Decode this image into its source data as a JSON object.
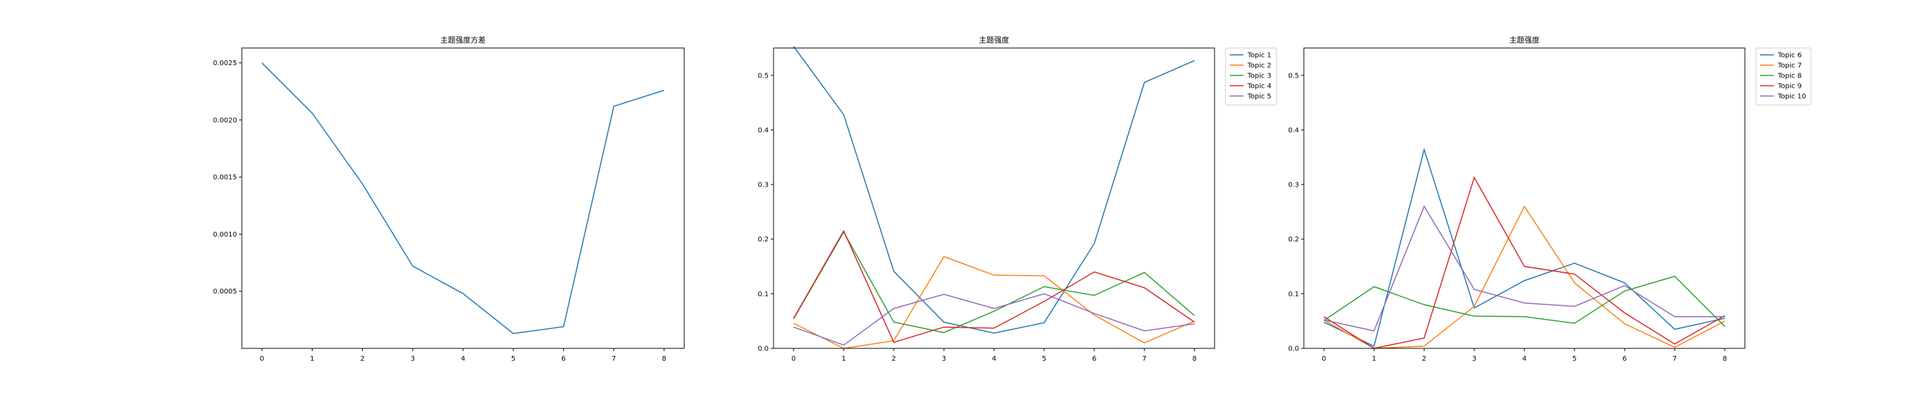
{
  "chart_data": [
    {
      "type": "line",
      "title": "主题强度方差",
      "x": [
        0,
        1,
        2,
        3,
        4,
        5,
        6,
        7,
        8
      ],
      "xticks": [
        0,
        1,
        2,
        3,
        4,
        5,
        6,
        7,
        8
      ],
      "xlim": [
        -0.4,
        8.4
      ],
      "ylim": [
        0,
        0.00263
      ],
      "yticks": [
        0.0005,
        0.001,
        0.0015,
        0.002,
        0.0025
      ],
      "ytick_labels": [
        "0.0005",
        "0.0010",
        "0.0015",
        "0.0020",
        "0.0025"
      ],
      "legend": "none",
      "grid": false,
      "series": [
        {
          "values": [
            0.0025,
            0.00206,
            0.00144,
            0.00072,
            0.00048,
            0.00013,
            0.00019,
            0.00212,
            0.00226
          ],
          "color": "#1f77b4"
        }
      ]
    },
    {
      "type": "line",
      "title": "主题强度",
      "x": [
        0,
        1,
        2,
        3,
        4,
        5,
        6,
        7,
        8
      ],
      "xticks": [
        0,
        1,
        2,
        3,
        4,
        5,
        6,
        7,
        8
      ],
      "xlim": [
        -0.4,
        8.4
      ],
      "ylim": [
        0,
        0.55
      ],
      "yticks": [
        0.0,
        0.1,
        0.2,
        0.3,
        0.4,
        0.5
      ],
      "ytick_labels": [
        "0.0",
        "0.1",
        "0.2",
        "0.3",
        "0.4",
        "0.5"
      ],
      "legend": "outside-upper-right",
      "grid": false,
      "series": [
        {
          "name": "Topic 1",
          "values": [
            0.553,
            0.428,
            0.141,
            0.048,
            0.028,
            0.047,
            0.192,
            0.487,
            0.527
          ],
          "color": "#1f77b4"
        },
        {
          "name": "Topic 2",
          "values": [
            0.046,
            0.0,
            0.014,
            0.168,
            0.134,
            0.133,
            0.061,
            0.01,
            0.05
          ],
          "color": "#ff7f0e"
        },
        {
          "name": "Topic 3",
          "values": [
            0.054,
            0.213,
            0.048,
            0.029,
            0.068,
            0.113,
            0.097,
            0.139,
            0.06
          ],
          "color": "#2ca02c"
        },
        {
          "name": "Topic 4",
          "values": [
            0.055,
            0.215,
            0.011,
            0.039,
            0.037,
            0.086,
            0.14,
            0.111,
            0.048
          ],
          "color": "#d62728"
        },
        {
          "name": "Topic 5",
          "values": [
            0.039,
            0.006,
            0.073,
            0.099,
            0.073,
            0.1,
            0.064,
            0.032,
            0.045
          ],
          "color": "#9467bd"
        }
      ]
    },
    {
      "type": "line",
      "title": "主题强度",
      "x": [
        0,
        1,
        2,
        3,
        4,
        5,
        6,
        7,
        8
      ],
      "xticks": [
        0,
        1,
        2,
        3,
        4,
        5,
        6,
        7,
        8
      ],
      "xlim": [
        -0.4,
        8.4
      ],
      "ylim": [
        0,
        0.55
      ],
      "yticks": [
        0.0,
        0.1,
        0.2,
        0.3,
        0.4,
        0.5
      ],
      "ytick_labels": [
        "0.0",
        "0.1",
        "0.2",
        "0.3",
        "0.4",
        "0.5"
      ],
      "legend": "outside-upper-right",
      "grid": false,
      "series": [
        {
          "name": "Topic 6",
          "values": [
            0.048,
            0.004,
            0.364,
            0.074,
            0.124,
            0.156,
            0.12,
            0.035,
            0.055
          ],
          "color": "#1f77b4"
        },
        {
          "name": "Topic 7",
          "values": [
            0.052,
            0.0,
            0.004,
            0.077,
            0.26,
            0.12,
            0.045,
            0.002,
            0.05
          ],
          "color": "#ff7f0e"
        },
        {
          "name": "Topic 8",
          "values": [
            0.051,
            0.113,
            0.08,
            0.059,
            0.058,
            0.046,
            0.105,
            0.132,
            0.04
          ],
          "color": "#2ca02c"
        },
        {
          "name": "Topic 9",
          "values": [
            0.058,
            0.0,
            0.019,
            0.313,
            0.15,
            0.136,
            0.065,
            0.008,
            0.06
          ],
          "color": "#d62728"
        },
        {
          "name": "Topic 10",
          "values": [
            0.052,
            0.032,
            0.26,
            0.108,
            0.083,
            0.077,
            0.115,
            0.058,
            0.058
          ],
          "color": "#9467bd"
        }
      ]
    }
  ]
}
